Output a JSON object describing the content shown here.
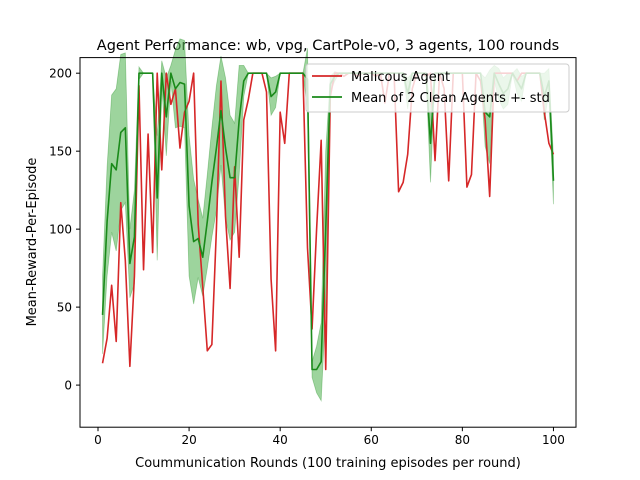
{
  "chart_data": {
    "type": "line",
    "title": "Agent Performance: wb, vpg, CartPole-v0, 3 agents, 100 rounds",
    "xlabel": "Coummunication Rounds (100 training episodes per round)",
    "ylabel": "Mean-Reward-Per-Episode",
    "xlim": [
      -3.95,
      104.95
    ],
    "ylim": [
      -27,
      210
    ],
    "xticks": [
      0,
      20,
      40,
      60,
      80,
      100
    ],
    "yticks": [
      0,
      50,
      100,
      150,
      200
    ],
    "grid": false,
    "legend_position": "top-right",
    "x": [
      1,
      2,
      3,
      4,
      5,
      6,
      7,
      8,
      9,
      10,
      11,
      12,
      13,
      14,
      15,
      16,
      17,
      18,
      19,
      20,
      21,
      22,
      23,
      24,
      25,
      26,
      27,
      28,
      29,
      30,
      31,
      32,
      33,
      34,
      35,
      36,
      37,
      38,
      39,
      40,
      41,
      42,
      43,
      44,
      45,
      46,
      47,
      48,
      49,
      50,
      51,
      52,
      53,
      54,
      55,
      56,
      57,
      58,
      59,
      60,
      61,
      62,
      63,
      64,
      65,
      66,
      67,
      68,
      69,
      70,
      71,
      72,
      73,
      74,
      75,
      76,
      77,
      78,
      79,
      80,
      81,
      82,
      83,
      84,
      85,
      86,
      87,
      88,
      89,
      90,
      91,
      92,
      93,
      94,
      95,
      96,
      97,
      98,
      99,
      100
    ],
    "series": [
      {
        "name": "Malicous Agent",
        "color": "#d62728",
        "values": [
          14,
          30,
          64,
          28,
          117,
          80,
          12,
          70,
          192,
          74,
          161,
          85,
          200,
          138,
          200,
          180,
          190,
          152,
          175,
          182,
          200,
          103,
          63,
          22,
          26,
          100,
          195,
          108,
          62,
          140,
          82,
          170,
          183,
          200,
          200,
          200,
          188,
          68,
          22,
          175,
          155,
          200,
          200,
          200,
          200,
          88,
          36,
          100,
          157,
          10,
          185,
          200,
          200,
          198,
          200,
          200,
          198,
          200,
          200,
          200,
          198,
          200,
          181,
          200,
          200,
          124,
          130,
          148,
          190,
          200,
          200,
          198,
          200,
          144,
          200,
          190,
          131,
          200,
          200,
          200,
          127,
          135,
          200,
          195,
          170,
          121,
          200,
          200,
          200,
          200,
          200,
          195,
          200,
          200,
          200,
          200,
          200,
          175,
          155,
          148
        ]
      },
      {
        "name": "Mean of 2 Clean Agents +- std",
        "color": "#1a8a1a",
        "band_color": "#5cb85c",
        "values": [
          45,
          105,
          142,
          138,
          162,
          165,
          78,
          95,
          200,
          200,
          200,
          200,
          120,
          200,
          172,
          200,
          190,
          194,
          193,
          115,
          92,
          94,
          82,
          105,
          130,
          152,
          176,
          152,
          133,
          133,
          170,
          195,
          200,
          200,
          200,
          200,
          200,
          185,
          188,
          200,
          200,
          200,
          200,
          200,
          200,
          196,
          10,
          10,
          15,
          100,
          193,
          198,
          200,
          200,
          200,
          200,
          200,
          200,
          200,
          200,
          200,
          200,
          200,
          200,
          200,
          200,
          200,
          187,
          200,
          200,
          200,
          200,
          155,
          200,
          200,
          200,
          200,
          200,
          200,
          200,
          200,
          200,
          200,
          200,
          175,
          172,
          200,
          193,
          187,
          190,
          200,
          195,
          190,
          200,
          200,
          200,
          200,
          185,
          195,
          131
        ],
        "std": [
          25,
          35,
          44,
          52,
          50,
          48,
          22,
          30,
          4,
          0,
          0,
          0,
          40,
          8,
          25,
          5,
          25,
          28,
          28,
          45,
          40,
          25,
          25,
          30,
          35,
          40,
          35,
          45,
          40,
          35,
          35,
          10,
          0,
          0,
          0,
          0,
          0,
          12,
          10,
          0,
          0,
          0,
          0,
          0,
          0,
          20,
          5,
          15,
          25,
          50,
          5,
          3,
          0,
          0,
          0,
          0,
          0,
          0,
          0,
          0,
          0,
          0,
          0,
          0,
          0,
          0,
          0,
          10,
          0,
          0,
          0,
          0,
          25,
          0,
          0,
          0,
          0,
          0,
          0,
          0,
          0,
          0,
          0,
          0,
          22,
          30,
          5,
          10,
          10,
          10,
          0,
          8,
          8,
          0,
          0,
          0,
          0,
          15,
          8,
          15
        ]
      }
    ]
  }
}
